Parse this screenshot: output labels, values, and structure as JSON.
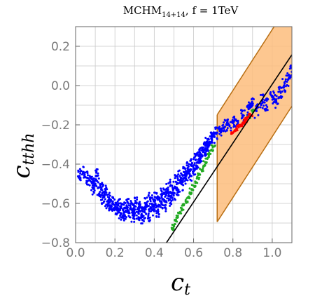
{
  "chart_data": {
    "type": "scatter",
    "title_main": "MCHM",
    "title_sub": "14+14",
    "title_rest": ",  f = 1TeV",
    "xlabel_main": "c",
    "xlabel_sub": "t",
    "ylabel_main": "c",
    "ylabel_sub": "tthh",
    "xlim": [
      0.0,
      1.1
    ],
    "ylim": [
      -0.8,
      0.3
    ],
    "x_ticks": [
      0.0,
      0.2,
      0.4,
      0.6,
      0.8,
      1.0
    ],
    "x_tick_labels": [
      "0.0",
      "0.2",
      "0.4",
      "0.6",
      "0.8",
      "1.0"
    ],
    "y_ticks": [
      -0.8,
      -0.6,
      -0.4,
      -0.2,
      0.0,
      0.2
    ],
    "y_tick_labels": [
      "−0.8",
      "−0.6",
      "−0.4",
      "−0.2",
      "0.0",
      "0.2"
    ],
    "grid": true,
    "band": {
      "color": "#fdbd7c",
      "edge_color": "#b86e12",
      "x_range": [
        0.72,
        1.1
      ],
      "upper_line": {
        "slope": 1.55,
        "intercept": -1.265
      },
      "lower_line": {
        "slope": 1.55,
        "intercept": -1.81
      }
    },
    "reference_line": {
      "color": "#000000",
      "slope": 1.5,
      "intercept": -1.493
    },
    "series": [
      {
        "color": "#0000ff",
        "points": [
          [
            0.02,
            -0.46
          ],
          [
            0.04,
            -0.44
          ],
          [
            0.06,
            -0.47
          ],
          [
            0.08,
            -0.49
          ],
          [
            0.09,
            -0.52
          ],
          [
            0.1,
            -0.5
          ],
          [
            0.11,
            -0.46
          ],
          [
            0.12,
            -0.55
          ],
          [
            0.13,
            -0.53
          ],
          [
            0.14,
            -0.57
          ],
          [
            0.15,
            -0.54
          ],
          [
            0.16,
            -0.59
          ],
          [
            0.17,
            -0.58
          ],
          [
            0.18,
            -0.61
          ],
          [
            0.19,
            -0.6
          ],
          [
            0.2,
            -0.63
          ],
          [
            0.21,
            -0.62
          ],
          [
            0.22,
            -0.6
          ],
          [
            0.23,
            -0.65
          ],
          [
            0.24,
            -0.63
          ],
          [
            0.25,
            -0.66
          ],
          [
            0.26,
            -0.61
          ],
          [
            0.27,
            -0.64
          ],
          [
            0.28,
            -0.62
          ],
          [
            0.29,
            -0.66
          ],
          [
            0.3,
            -0.63
          ],
          [
            0.31,
            -0.6
          ],
          [
            0.32,
            -0.65
          ],
          [
            0.33,
            -0.62
          ],
          [
            0.34,
            -0.67
          ],
          [
            0.35,
            -0.64
          ],
          [
            0.36,
            -0.6
          ],
          [
            0.37,
            -0.66
          ],
          [
            0.38,
            -0.58
          ],
          [
            0.39,
            -0.63
          ],
          [
            0.4,
            -0.61
          ],
          [
            0.41,
            -0.57
          ],
          [
            0.42,
            -0.64
          ],
          [
            0.43,
            -0.59
          ],
          [
            0.44,
            -0.55
          ],
          [
            0.45,
            -0.61
          ],
          [
            0.46,
            -0.56
          ],
          [
            0.47,
            -0.53
          ],
          [
            0.48,
            -0.58
          ],
          [
            0.49,
            -0.51
          ],
          [
            0.5,
            -0.55
          ],
          [
            0.51,
            -0.49
          ],
          [
            0.52,
            -0.53
          ],
          [
            0.53,
            -0.46
          ],
          [
            0.54,
            -0.5
          ],
          [
            0.55,
            -0.44
          ],
          [
            0.56,
            -0.47
          ],
          [
            0.57,
            -0.42
          ],
          [
            0.58,
            -0.45
          ],
          [
            0.59,
            -0.4
          ],
          [
            0.6,
            -0.42
          ],
          [
            0.61,
            -0.38
          ],
          [
            0.62,
            -0.39
          ],
          [
            0.63,
            -0.36
          ],
          [
            0.64,
            -0.35
          ],
          [
            0.65,
            -0.33
          ],
          [
            0.66,
            -0.32
          ],
          [
            0.67,
            -0.3
          ],
          [
            0.68,
            -0.29
          ],
          [
            0.69,
            -0.27
          ],
          [
            0.7,
            -0.26
          ],
          [
            0.72,
            -0.24
          ],
          [
            0.74,
            -0.22
          ],
          [
            0.76,
            -0.21
          ],
          [
            0.78,
            -0.2
          ],
          [
            0.8,
            -0.19
          ],
          [
            0.82,
            -0.18
          ],
          [
            0.85,
            -0.15
          ],
          [
            0.88,
            -0.12
          ],
          [
            0.9,
            -0.1
          ],
          [
            0.92,
            -0.13
          ],
          [
            0.95,
            -0.08
          ],
          [
            0.97,
            -0.1
          ],
          [
            1.0,
            -0.06
          ],
          [
            1.02,
            -0.08
          ],
          [
            1.04,
            -0.03
          ],
          [
            1.06,
            0.0
          ],
          [
            1.08,
            0.03
          ],
          [
            1.1,
            0.07
          ]
        ]
      },
      {
        "color": "#22aa22",
        "points": [
          [
            0.49,
            -0.73
          ],
          [
            0.5,
            -0.71
          ],
          [
            0.51,
            -0.69
          ],
          [
            0.52,
            -0.67
          ],
          [
            0.53,
            -0.65
          ],
          [
            0.54,
            -0.63
          ],
          [
            0.55,
            -0.61
          ],
          [
            0.56,
            -0.59
          ],
          [
            0.57,
            -0.57
          ],
          [
            0.58,
            -0.55
          ],
          [
            0.59,
            -0.53
          ],
          [
            0.6,
            -0.51
          ],
          [
            0.61,
            -0.49
          ],
          [
            0.62,
            -0.47
          ],
          [
            0.63,
            -0.45
          ],
          [
            0.64,
            -0.43
          ],
          [
            0.65,
            -0.41
          ],
          [
            0.66,
            -0.39
          ],
          [
            0.67,
            -0.37
          ],
          [
            0.68,
            -0.35
          ],
          [
            0.69,
            -0.33
          ],
          [
            0.7,
            -0.31
          ],
          [
            0.88,
            -0.16
          ],
          [
            0.9,
            -0.13
          ]
        ]
      },
      {
        "color": "#ff0000",
        "points": [
          [
            0.8,
            -0.24
          ],
          [
            0.81,
            -0.23
          ],
          [
            0.82,
            -0.22
          ],
          [
            0.83,
            -0.21
          ],
          [
            0.84,
            -0.2
          ],
          [
            0.85,
            -0.19
          ],
          [
            0.86,
            -0.18
          ],
          [
            0.87,
            -0.17
          ],
          [
            0.88,
            -0.16
          ],
          [
            0.89,
            -0.15
          ]
        ]
      }
    ]
  }
}
